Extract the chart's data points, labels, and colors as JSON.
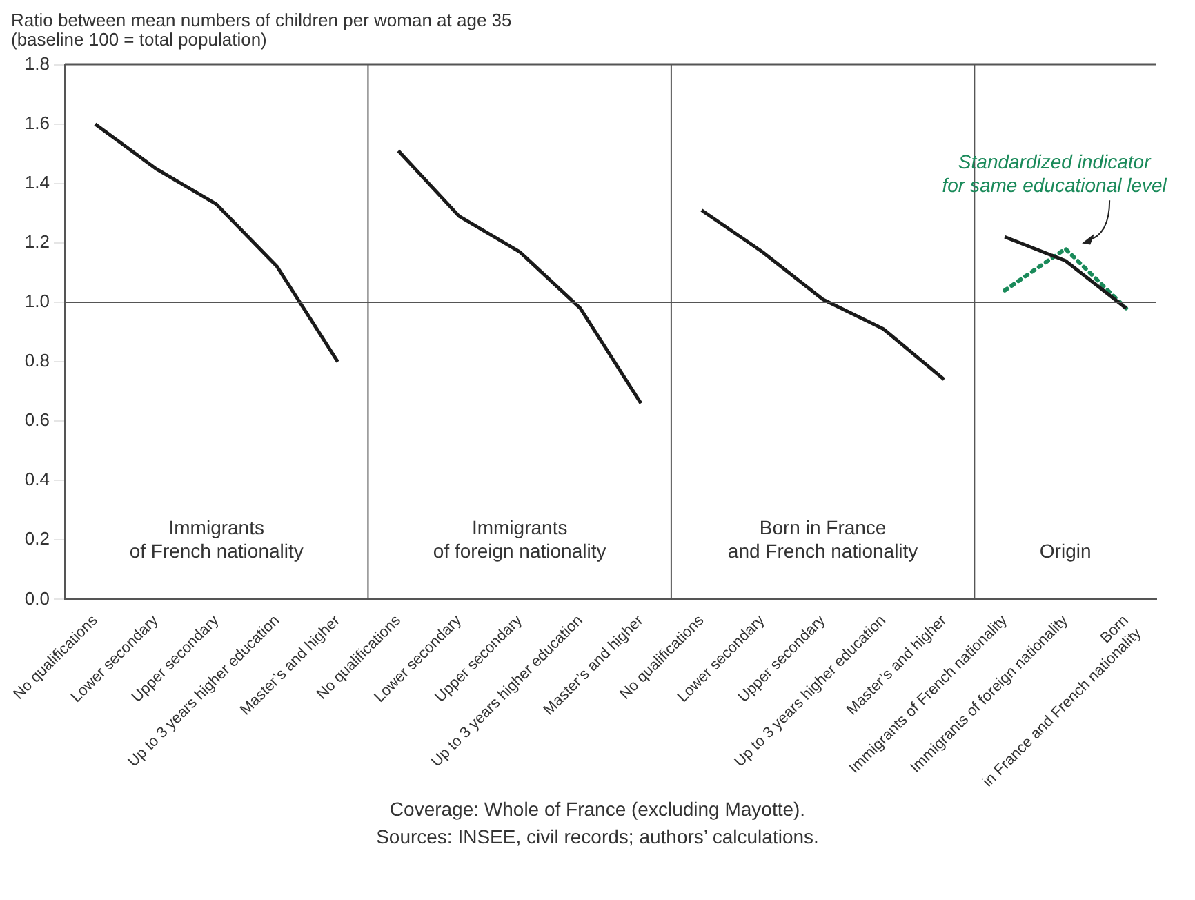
{
  "chart_data": {
    "type": "line",
    "title": "Ratio between mean numbers of children per woman at age 35",
    "subtitle": "(baseline 100 = total population)",
    "categories": [
      "No qualifications",
      "Lower secondary",
      "Upper secondary",
      "Up to 3 years higher education",
      "Master’s and higher",
      "No qualifications",
      "Lower secondary",
      "Upper secondary",
      "Up to 3 years higher education",
      "Master’s and higher",
      "No qualifications",
      "Lower secondary",
      "Upper secondary",
      "Up to 3 years higher education",
      "Master’s and higher",
      "Immigrants of French nationality",
      "Immigrants of foreign nationality",
      "Born in France and French nationality"
    ],
    "series": [
      {
        "color": "#1a1a1a",
        "values": [
          1.6,
          1.45,
          1.33,
          1.12,
          0.8,
          null,
          null,
          null,
          null,
          null,
          null,
          null,
          null,
          null,
          null,
          null,
          null,
          null
        ]
      },
      {
        "color": "#1a1a1a",
        "values": [
          null,
          null,
          null,
          null,
          null,
          1.51,
          1.29,
          1.17,
          0.98,
          0.66,
          null,
          null,
          null,
          null,
          null,
          null,
          null,
          null
        ]
      },
      {
        "color": "#1a1a1a",
        "values": [
          null,
          null,
          null,
          null,
          null,
          null,
          null,
          null,
          null,
          null,
          1.31,
          1.17,
          1.01,
          0.91,
          0.74,
          null,
          null,
          null
        ]
      },
      {
        "color": "#1a1a1a",
        "values": [
          null,
          null,
          null,
          null,
          null,
          null,
          null,
          null,
          null,
          null,
          null,
          null,
          null,
          null,
          null,
          1.22,
          1.14,
          0.98
        ]
      },
      {
        "name": "Standardized indicator for same educational level",
        "color": "#1a8a5a",
        "line_style": "dotted",
        "values": [
          null,
          null,
          null,
          null,
          null,
          null,
          null,
          null,
          null,
          null,
          null,
          null,
          null,
          null,
          null,
          1.04,
          1.18,
          0.98
        ]
      }
    ],
    "ylim": [
      0,
      1.8
    ],
    "yticks": [
      {
        "value": 0,
        "label": "0.0"
      },
      {
        "value": 0.2,
        "label": "0.2"
      },
      {
        "value": 0.4,
        "label": "0.4"
      },
      {
        "value": 0.6,
        "label": "0.6"
      },
      {
        "value": 0.8,
        "label": "0.8"
      },
      {
        "value": 1,
        "label": "1.0"
      },
      {
        "value": 1.2,
        "label": "1.2"
      },
      {
        "value": 1.4,
        "label": "1.4"
      },
      {
        "value": 1.6,
        "label": "1.6"
      },
      {
        "value": 1.8,
        "label": "1.8"
      }
    ],
    "ref_lines": [
      {
        "axis": "y",
        "value": 1,
        "color": "#555555"
      }
    ],
    "grid": false,
    "legend": false,
    "marker": "none",
    "annotations": [
      "Immigrants of French nationality",
      "Immigrants of foreign nationality",
      "Born in France and French nationality",
      "Origin",
      "Coverage: Whole of France (excluding Mayotte).",
      "Sources: INSEE, civil records; authors’ calculations."
    ]
  }
}
